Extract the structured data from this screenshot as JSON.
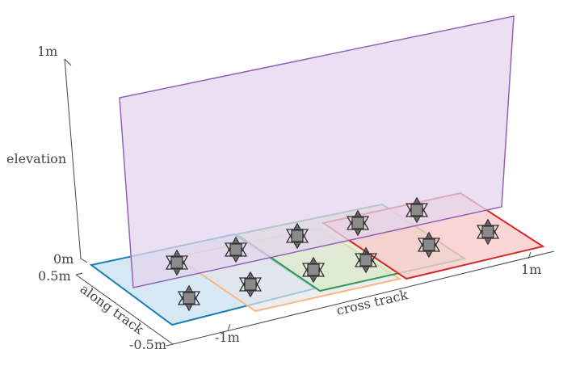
{
  "axes": {
    "elevation": {
      "label": "elevation",
      "tick_top": "1m",
      "tick_bottom": "0m"
    },
    "along_track": {
      "label": "along track",
      "tick_near": "-0.5m",
      "tick_far": "0.5m"
    },
    "cross_track": {
      "label": "cross track",
      "tick_left": "-1m",
      "tick_right": "1m"
    }
  },
  "regions": [
    {
      "id": "blue",
      "stroke": "#1a7db3",
      "fill": "#cfe4f2"
    },
    {
      "id": "orange",
      "stroke": "#f5b887",
      "fill": "#e6e6ea"
    },
    {
      "id": "green",
      "stroke": "#2e9a55",
      "fill": "#d8e8c8"
    },
    {
      "id": "red",
      "stroke": "#d62828",
      "fill": "#f7caca"
    }
  ],
  "vertical_plane": {
    "stroke": "#9460b8",
    "fill": "#e3d6ec"
  },
  "marker_count": 12,
  "colors": {
    "axis": "#444444",
    "marker_fill": "#8a8a8a",
    "marker_stroke": "#333333"
  }
}
